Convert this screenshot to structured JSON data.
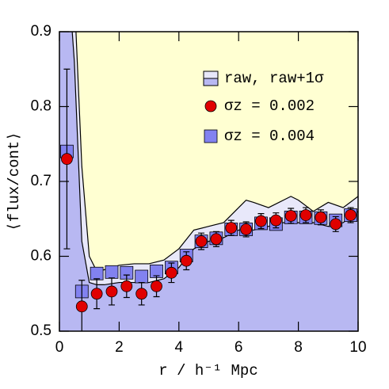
{
  "chart_data": {
    "type": "band-points",
    "xlabel": "r / h⁻¹ Mpc",
    "ylabel": "⟨flux/cont⟩",
    "xlim": [
      0,
      10
    ],
    "ylim": [
      0.5,
      0.9
    ],
    "xticks": [
      0,
      2,
      4,
      6,
      8,
      10
    ],
    "yticks": [
      0.5,
      0.6,
      0.7,
      0.8,
      0.9
    ],
    "background": "#ffffd2",
    "band": {
      "name": "raw, raw+1σ",
      "color": "#b8b8f2",
      "band_color": "#e8e8fa",
      "line_color": "#000000",
      "x": [
        0.25,
        0.5,
        0.75,
        1.0,
        1.25,
        1.5,
        2,
        2.5,
        3,
        3.5,
        4,
        4.5,
        5,
        5.5,
        6,
        6.25,
        6.5,
        7,
        7.5,
        7.75,
        8,
        8.5,
        9,
        9.5,
        10
      ],
      "lower": [
        1.0,
        0.86,
        0.62,
        0.565,
        0.562,
        0.562,
        0.565,
        0.565,
        0.565,
        0.57,
        0.585,
        0.61,
        0.62,
        0.625,
        0.635,
        0.637,
        0.635,
        0.64,
        0.645,
        0.645,
        0.645,
        0.645,
        0.64,
        0.645,
        0.66
      ],
      "upper": [
        1.1,
        0.95,
        0.72,
        0.6,
        0.58,
        0.582,
        0.588,
        0.59,
        0.59,
        0.595,
        0.61,
        0.635,
        0.64,
        0.645,
        0.665,
        0.675,
        0.672,
        0.665,
        0.675,
        0.68,
        0.675,
        0.66,
        0.672,
        0.665,
        0.68
      ]
    },
    "series": [
      {
        "name": "σz = 0.004",
        "marker": "square",
        "color": "#8282f0",
        "x": [
          0.25,
          0.75,
          1.25,
          1.75,
          2.25,
          2.75,
          3.25,
          3.75,
          4.25,
          4.75,
          5.25,
          5.75,
          6.25,
          6.75,
          7.25,
          7.75,
          8.25,
          8.75,
          9.25,
          9.75
        ],
        "values": [
          0.74,
          0.553,
          0.577,
          0.579,
          0.578,
          0.573,
          0.58,
          0.585,
          0.601,
          0.62,
          0.624,
          0.636,
          0.636,
          0.644,
          0.643,
          0.652,
          0.652,
          0.651,
          0.648,
          0.655
        ]
      },
      {
        "name": "σz = 0.002",
        "marker": "circle",
        "color": "#e00000",
        "x": [
          0.25,
          0.75,
          1.25,
          1.75,
          2.25,
          2.75,
          3.25,
          3.75,
          4.25,
          4.75,
          5.25,
          5.75,
          6.25,
          6.75,
          7.25,
          7.75,
          8.25,
          8.75,
          9.25,
          9.75
        ],
        "values": [
          0.73,
          0.533,
          0.55,
          0.553,
          0.56,
          0.55,
          0.56,
          0.578,
          0.594,
          0.62,
          0.623,
          0.638,
          0.636,
          0.647,
          0.648,
          0.654,
          0.655,
          0.652,
          0.643,
          0.655
        ],
        "errors": [
          0.12,
          0.035,
          0.02,
          0.018,
          0.015,
          0.015,
          0.014,
          0.013,
          0.012,
          0.011,
          0.01,
          0.01,
          0.01,
          0.01,
          0.01,
          0.01,
          0.01,
          0.01,
          0.01,
          0.01
        ]
      }
    ]
  }
}
